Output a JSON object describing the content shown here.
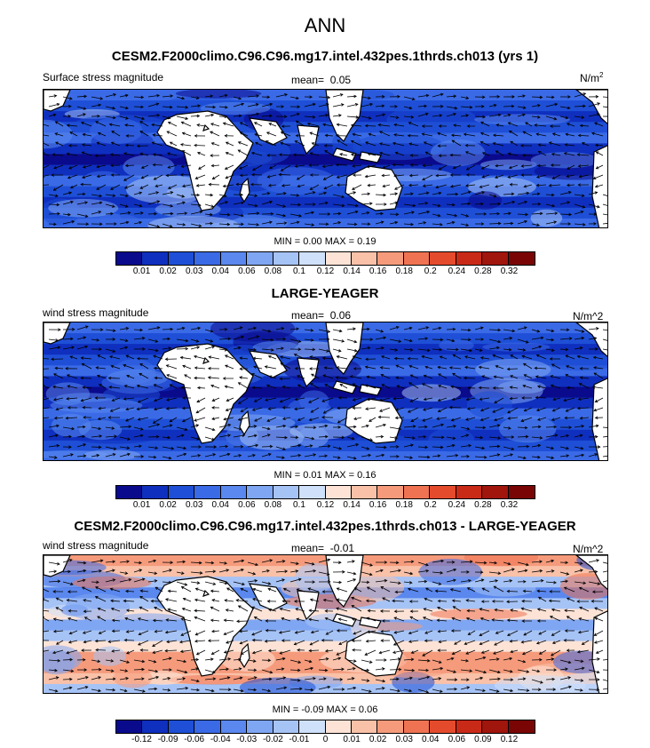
{
  "main_title": "ANN",
  "panels": [
    {
      "title": "CESM2.F2000climo.C96.C96.mg17.intel.432pes.1thrds.ch013 (yrs 1)",
      "field_label": "Surface stress magnitude",
      "mean_label": "mean=",
      "mean_value": "0.05",
      "units_base": "N/m",
      "units_sup": "2",
      "min_label": "MIN =",
      "min_value": "0.00",
      "max_label": "MAX =",
      "max_value": "0.19",
      "levels": [
        "0.01",
        "0.02",
        "0.03",
        "0.04",
        "0.06",
        "0.08",
        "0.1",
        "0.12",
        "0.14",
        "0.16",
        "0.18",
        "0.2",
        "0.24",
        "0.28",
        "0.32"
      ],
      "style": "abs"
    },
    {
      "title": "LARGE-YEAGER",
      "field_label": "wind stress magnitude",
      "mean_label": "mean=",
      "mean_value": "0.06",
      "units_base": "N/m^2",
      "units_sup": "",
      "min_label": "MIN =",
      "min_value": "0.01",
      "max_label": "MAX =",
      "max_value": "0.16",
      "levels": [
        "0.01",
        "0.02",
        "0.03",
        "0.04",
        "0.06",
        "0.08",
        "0.1",
        "0.12",
        "0.14",
        "0.16",
        "0.18",
        "0.2",
        "0.24",
        "0.28",
        "0.32"
      ],
      "style": "abs"
    },
    {
      "title": "CESM2.F2000climo.C96.C96.mg17.intel.432pes.1thrds.ch013 - LARGE-YEAGER",
      "field_label": "wind stress magnitude",
      "mean_label": "mean=",
      "mean_value": "-0.01",
      "units_base": "N/m^2",
      "units_sup": "",
      "min_label": "MIN =",
      "min_value": "-0.09",
      "max_label": "MAX =",
      "max_value": "0.06",
      "levels": [
        "-0.12",
        "-0.09",
        "-0.06",
        "-0.04",
        "-0.03",
        "-0.02",
        "-0.01",
        "0",
        "0.01",
        "0.02",
        "0.03",
        "0.04",
        "0.06",
        "0.09",
        "0.12"
      ],
      "style": "diff"
    }
  ],
  "colorbar_colors": [
    "#0a0a8c",
    "#0f2fbe",
    "#1e4fd6",
    "#3a6ae6",
    "#5a88ee",
    "#7fa6f2",
    "#a6c3f6",
    "#cfe0fa",
    "#fde3d6",
    "#f9c1a8",
    "#f59b7c",
    "#ef7352",
    "#e44b2d",
    "#c92a18",
    "#a0150c",
    "#7a0505"
  ]
}
